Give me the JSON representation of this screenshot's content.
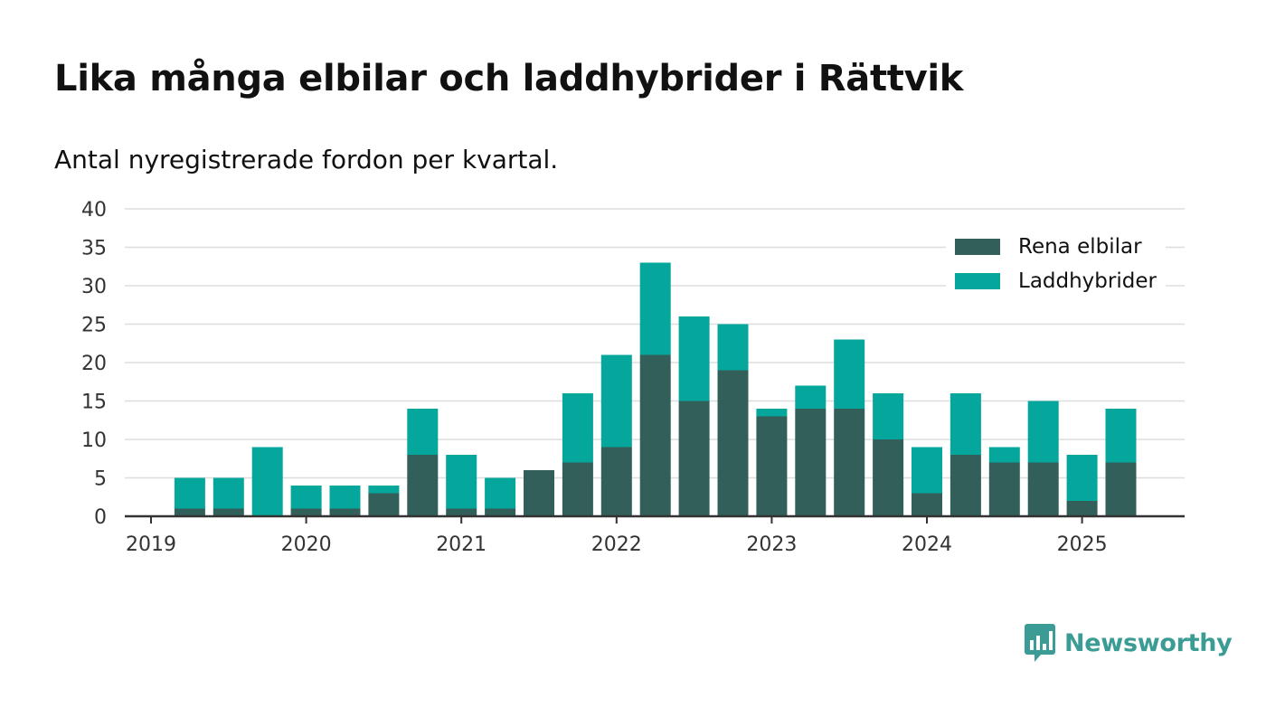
{
  "title": "Lika många elbilar och laddhybrider i Rättvik",
  "subtitle": "Antal nyregistrerade fordon per kvartal.",
  "brand": {
    "name": "Newsworthy",
    "color": "#3b9c95",
    "logo_icon": "bar-chart-speech-bubble-icon"
  },
  "colors": {
    "grid": "#dddddd",
    "axis": "#333333",
    "text": "#333333"
  },
  "chart_data": {
    "type": "bar",
    "stacked": true,
    "x_tick_labels": [
      "2019",
      "2020",
      "2021",
      "2022",
      "2023",
      "2024",
      "2025"
    ],
    "categories": [
      "2019 Q1",
      "2019 Q2",
      "2019 Q3",
      "2019 Q4",
      "2020 Q1",
      "2020 Q2",
      "2020 Q3",
      "2020 Q4",
      "2021 Q1",
      "2021 Q2",
      "2021 Q3",
      "2021 Q4",
      "2022 Q1",
      "2022 Q2",
      "2022 Q3",
      "2022 Q4",
      "2023 Q1",
      "2023 Q2",
      "2023 Q3",
      "2023 Q4",
      "2024 Q1",
      "2024 Q2",
      "2024 Q3",
      "2024 Q4",
      "2025 Q1",
      "2025 Q2"
    ],
    "series": [
      {
        "name": "Rena elbilar",
        "color": "#325f5a",
        "values": [
          0,
          1,
          1,
          0,
          1,
          1,
          3,
          8,
          1,
          1,
          6,
          7,
          9,
          21,
          15,
          19,
          13,
          14,
          14,
          10,
          3,
          8,
          7,
          7,
          2,
          7
        ]
      },
      {
        "name": "Laddhybrider",
        "color": "#05a69b",
        "values": [
          0,
          4,
          4,
          9,
          3,
          3,
          1,
          6,
          7,
          4,
          0,
          9,
          12,
          12,
          11,
          6,
          1,
          3,
          9,
          6,
          6,
          8,
          2,
          8,
          6,
          7
        ]
      }
    ],
    "y_ticks": [
      0,
      5,
      10,
      15,
      20,
      25,
      30,
      35,
      40
    ],
    "ylim": [
      0,
      40
    ],
    "grid": true,
    "legend_position": "top-right"
  }
}
